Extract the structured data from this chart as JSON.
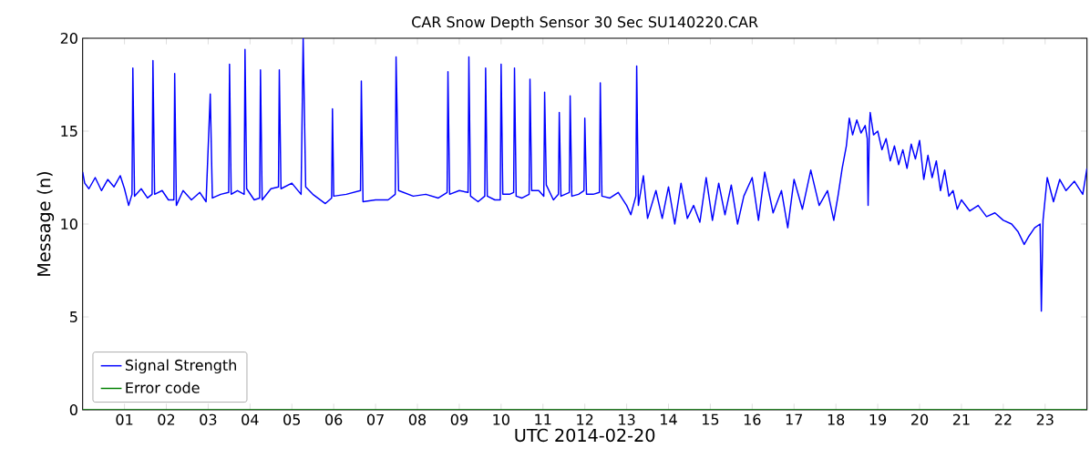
{
  "chart_data": {
    "type": "line",
    "title": "CAR Snow Depth Sensor 30 Sec SU140220.CAR",
    "xlabel": "UTC 2014-02-20",
    "ylabel": "Message (n)",
    "xlim": [
      0,
      24
    ],
    "ylim": [
      0,
      20
    ],
    "xticks": [
      {
        "value": 1,
        "label": "01"
      },
      {
        "value": 2,
        "label": "02"
      },
      {
        "value": 3,
        "label": "03"
      },
      {
        "value": 4,
        "label": "04"
      },
      {
        "value": 5,
        "label": "05"
      },
      {
        "value": 6,
        "label": "06"
      },
      {
        "value": 7,
        "label": "07"
      },
      {
        "value": 8,
        "label": "08"
      },
      {
        "value": 9,
        "label": "09"
      },
      {
        "value": 10,
        "label": "10"
      },
      {
        "value": 11,
        "label": "11"
      },
      {
        "value": 12,
        "label": "12"
      },
      {
        "value": 13,
        "label": "13"
      },
      {
        "value": 14,
        "label": "14"
      },
      {
        "value": 15,
        "label": "15"
      },
      {
        "value": 16,
        "label": "16"
      },
      {
        "value": 17,
        "label": "17"
      },
      {
        "value": 18,
        "label": "18"
      },
      {
        "value": 19,
        "label": "19"
      },
      {
        "value": 20,
        "label": "20"
      },
      {
        "value": 21,
        "label": "21"
      },
      {
        "value": 22,
        "label": "22"
      },
      {
        "value": 23,
        "label": "23"
      }
    ],
    "yticks": [
      0,
      5,
      10,
      15,
      20
    ],
    "grid": false,
    "legend": "bottom left",
    "marker": "none",
    "line_style": "solid",
    "series": [
      {
        "name": "Signal Strength",
        "color": "#0000ff",
        "x": [
          0,
          0.05,
          0.15,
          0.3,
          0.45,
          0.6,
          0.75,
          0.9,
          1.0,
          1.1,
          1.18,
          1.2,
          1.24,
          1.4,
          1.55,
          1.66,
          1.68,
          1.72,
          1.9,
          2.05,
          2.18,
          2.2,
          2.24,
          2.4,
          2.6,
          2.8,
          2.95,
          3.05,
          3.1,
          3.3,
          3.49,
          3.51,
          3.55,
          3.7,
          3.86,
          3.88,
          3.92,
          4.1,
          4.23,
          4.25,
          4.29,
          4.5,
          4.68,
          4.7,
          4.74,
          5.0,
          5.22,
          5.27,
          5.33,
          5.5,
          5.8,
          5.95,
          5.97,
          6.0,
          6.3,
          6.64,
          6.66,
          6.7,
          7.0,
          7.3,
          7.47,
          7.49,
          7.55,
          7.9,
          8.2,
          8.5,
          8.71,
          8.73,
          8.77,
          9.0,
          9.21,
          9.23,
          9.27,
          9.45,
          9.61,
          9.63,
          9.67,
          9.85,
          9.98,
          10.0,
          10.04,
          10.2,
          10.3,
          10.32,
          10.36,
          10.5,
          10.67,
          10.69,
          10.73,
          10.9,
          11.02,
          11.04,
          11.08,
          11.25,
          11.37,
          11.39,
          11.43,
          11.63,
          11.65,
          11.69,
          11.85,
          11.98,
          12.0,
          12.04,
          12.2,
          12.35,
          12.37,
          12.41,
          12.6,
          12.8,
          13.0,
          13.1,
          13.22,
          13.24,
          13.28,
          13.4,
          13.5,
          13.7,
          13.85,
          14.0,
          14.15,
          14.3,
          14.45,
          14.6,
          14.75,
          14.9,
          15.05,
          15.2,
          15.35,
          15.5,
          15.65,
          15.8,
          16.0,
          16.15,
          16.3,
          16.5,
          16.7,
          16.85,
          17.0,
          17.2,
          17.4,
          17.6,
          17.8,
          17.95,
          18.05,
          18.15,
          18.25,
          18.32,
          18.4,
          18.5,
          18.6,
          18.7,
          18.75,
          18.77,
          18.8,
          18.82,
          18.9,
          19.0,
          19.1,
          19.2,
          19.3,
          19.4,
          19.5,
          19.6,
          19.7,
          19.8,
          19.9,
          20.0,
          20.1,
          20.2,
          20.3,
          20.4,
          20.5,
          20.6,
          20.7,
          20.8,
          20.9,
          21.0,
          21.2,
          21.4,
          21.6,
          21.8,
          22.0,
          22.2,
          22.35,
          22.5,
          22.6,
          22.75,
          22.88,
          22.91,
          22.95,
          23.05,
          23.2,
          23.35,
          23.5,
          23.7,
          23.9,
          24.0
        ],
        "values": [
          12.8,
          12.2,
          11.9,
          12.5,
          11.8,
          12.4,
          12.0,
          12.6,
          11.9,
          11.0,
          11.6,
          18.4,
          11.5,
          11.9,
          11.4,
          11.6,
          18.8,
          11.6,
          11.8,
          11.3,
          11.3,
          18.1,
          11.0,
          11.8,
          11.3,
          11.7,
          11.2,
          17.0,
          11.4,
          11.6,
          11.7,
          18.6,
          11.6,
          11.8,
          11.6,
          19.4,
          11.9,
          11.3,
          11.4,
          18.3,
          11.3,
          11.9,
          12.0,
          18.3,
          11.9,
          12.2,
          11.6,
          20.0,
          12.0,
          11.6,
          11.1,
          11.4,
          16.2,
          11.5,
          11.6,
          11.8,
          17.7,
          11.2,
          11.3,
          11.3,
          11.6,
          19.0,
          11.8,
          11.5,
          11.6,
          11.4,
          11.7,
          18.2,
          11.6,
          11.8,
          11.7,
          19.0,
          11.5,
          11.2,
          11.5,
          18.4,
          11.5,
          11.3,
          11.3,
          18.6,
          11.6,
          11.6,
          11.7,
          18.4,
          11.5,
          11.4,
          11.6,
          17.8,
          11.8,
          11.8,
          11.5,
          17.1,
          12.1,
          11.3,
          11.6,
          16.0,
          11.5,
          11.7,
          16.9,
          11.5,
          11.6,
          11.8,
          15.7,
          11.6,
          11.6,
          11.7,
          17.6,
          11.5,
          11.4,
          11.7,
          11.0,
          10.5,
          11.5,
          18.5,
          11.0,
          12.6,
          10.3,
          11.8,
          10.3,
          12.0,
          10.0,
          12.2,
          10.3,
          11.0,
          10.1,
          12.5,
          10.2,
          12.2,
          10.5,
          12.1,
          10.0,
          11.5,
          12.5,
          10.2,
          12.8,
          10.6,
          11.8,
          9.8,
          12.4,
          10.8,
          12.9,
          11.0,
          11.8,
          10.2,
          11.5,
          13.0,
          14.2,
          15.7,
          14.8,
          15.6,
          14.9,
          15.3,
          14.6,
          11.0,
          15.2,
          16.0,
          14.8,
          15.0,
          14.0,
          14.6,
          13.4,
          14.2,
          13.2,
          14.0,
          13.0,
          14.3,
          13.5,
          14.5,
          12.4,
          13.7,
          12.5,
          13.4,
          11.8,
          12.9,
          11.5,
          11.8,
          10.8,
          11.3,
          10.7,
          11.0,
          10.4,
          10.6,
          10.2,
          10.0,
          9.6,
          8.9,
          9.3,
          9.8,
          10.0,
          5.3,
          10.2,
          12.5,
          11.2,
          12.4,
          11.8,
          12.3,
          11.6,
          13.0
        ]
      },
      {
        "name": "Error code",
        "color": "#008000",
        "x": [
          0,
          24
        ],
        "values": [
          0,
          0
        ]
      }
    ]
  }
}
